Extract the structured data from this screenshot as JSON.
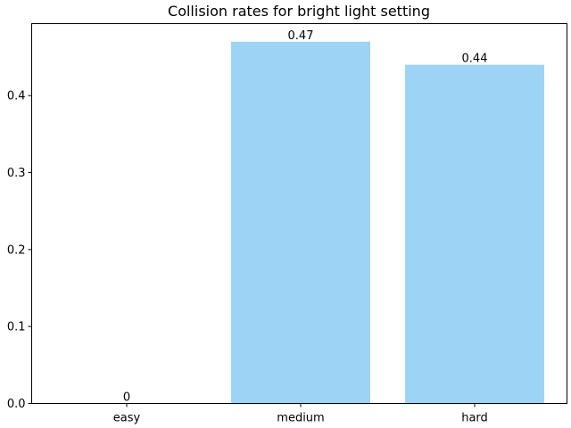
{
  "chart_data": {
    "type": "bar",
    "title": "Collision rates for bright light setting",
    "xlabel": "",
    "ylabel": "",
    "categories": [
      "easy",
      "medium",
      "hard"
    ],
    "values": [
      0,
      0.47,
      0.44
    ],
    "bar_labels": [
      "0",
      "0.47",
      "0.44"
    ],
    "ylim": [
      0,
      0.4935
    ],
    "yticks": [
      0.0,
      0.1,
      0.2,
      0.3,
      0.4
    ],
    "ytick_labels": [
      "0.0",
      "0.1",
      "0.2",
      "0.3",
      "0.4"
    ],
    "bar_color": "#9dd3f5",
    "grid": false,
    "legend": "none"
  }
}
